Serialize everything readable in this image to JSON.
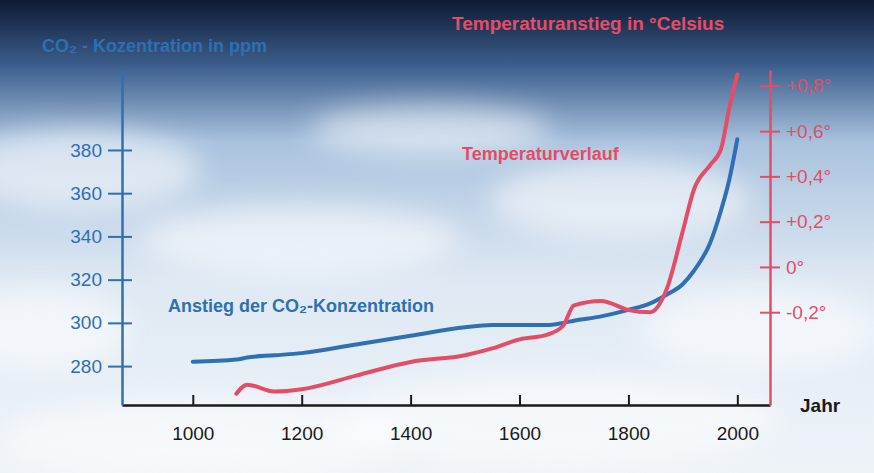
{
  "chart_data": {
    "type": "line",
    "xlabel": "Jahr",
    "ylabel": "CO₂ - Kozentration in ppm",
    "y2label": "Temperaturanstieg in °Celsius",
    "x": [
      1000,
      1080,
      1100,
      1150,
      1200,
      1300,
      1400,
      1500,
      1550,
      1600,
      1650,
      1680,
      1700,
      1750,
      1800,
      1840,
      1870,
      1900,
      1920,
      1950,
      1970,
      1985,
      2000
    ],
    "series": [
      {
        "name": "Anstieg der CO₂-Konzentration",
        "color": "#2f6fb3",
        "values": [
          282,
          283,
          284,
          285,
          286,
          290,
          294,
          298,
          299,
          299,
          299,
          300,
          301,
          303,
          306,
          309,
          313,
          318,
          324,
          337,
          352,
          366,
          385
        ]
      },
      {
        "name": "Temperaturverlauf",
        "color": "#e34d68",
        "axis": "y2",
        "values": [
          null,
          -0.56,
          -0.52,
          -0.55,
          -0.54,
          -0.48,
          -0.42,
          -0.39,
          -0.36,
          -0.32,
          -0.3,
          -0.26,
          -0.17,
          -0.15,
          -0.19,
          -0.2,
          -0.1,
          0.16,
          0.34,
          0.45,
          0.52,
          0.7,
          0.85
        ]
      }
    ],
    "xlim": [
      870,
      2060
    ],
    "xticks": [
      1000,
      1200,
      1400,
      1600,
      1800,
      2000
    ],
    "ylim": [
      262,
      417
    ],
    "yticks": [
      280,
      300,
      320,
      340,
      360,
      380
    ],
    "y2lim": [
      -0.61,
      0.87
    ],
    "y2ticks": [
      {
        "value": -0.2,
        "label": "-0,2°"
      },
      {
        "value": 0,
        "label": "0°"
      },
      {
        "value": 0.2,
        "label": "+0,2°"
      },
      {
        "value": 0.4,
        "label": "+0,4°"
      },
      {
        "value": 0.6,
        "label": "+0,6°"
      },
      {
        "value": 0.8,
        "label": "+0,8°"
      }
    ],
    "grid": false
  }
}
